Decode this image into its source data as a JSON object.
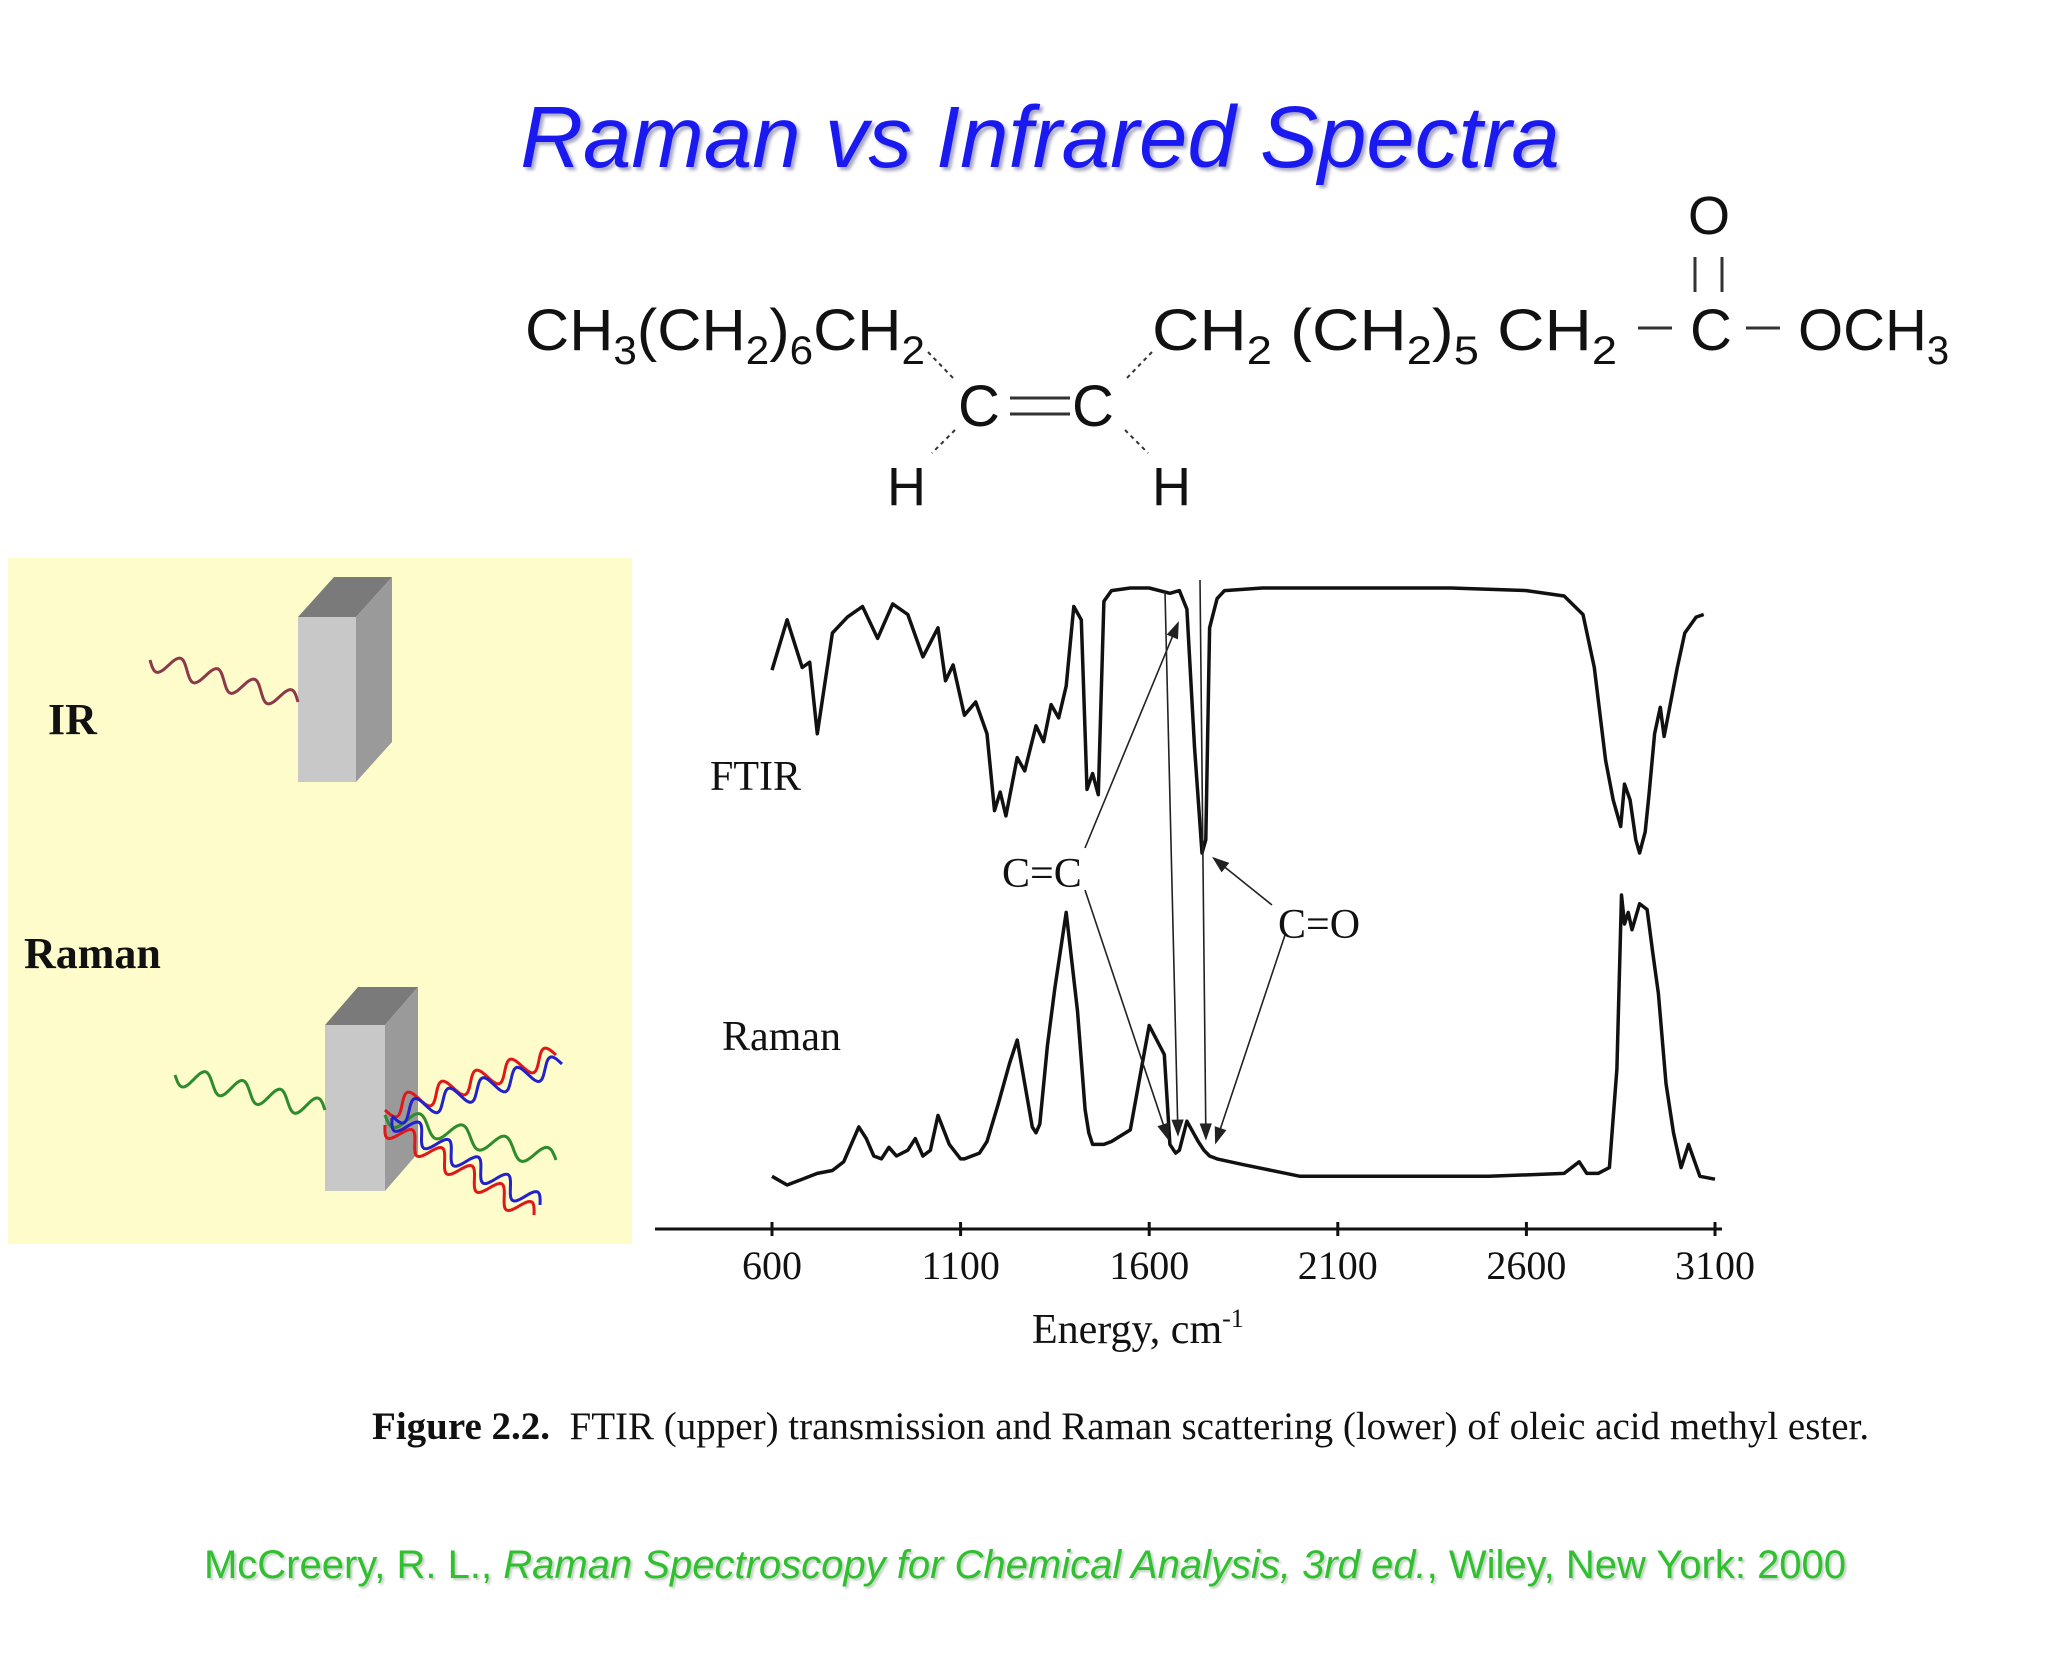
{
  "slide": {
    "title": "Raman vs Infrared Spectra",
    "caption_label": "Figure 2.2.",
    "caption_text": "FTIR (upper) transmission and Raman scattering (lower) of oleic acid methyl ester.",
    "citation_author": "McCreery, R. L., ",
    "citation_title": "Raman Spectroscopy for Chemical Analysis, 3rd ed.",
    "citation_tail": ", Wiley, New York: 2000"
  },
  "molecule": {
    "left_chain": "CH3(CH2)6CH2",
    "right_chain": "CH2  (CH2)5  CH2",
    "double_bond_left": "C",
    "double_bond_right": "C",
    "h_left": "H",
    "h_right": "H",
    "carbonyl_o": "O",
    "carbonyl_c": "C",
    "ester_group": "OCH3"
  },
  "illustration": {
    "ir_label": "IR",
    "raman_label": "Raman",
    "panel_color": "#fefccb",
    "wave_colors": {
      "ir": "#8b3a4a",
      "incident": "#2e8b2e",
      "stokes": "#e01818",
      "anti_stokes": "#2222cc"
    }
  },
  "chart_data": {
    "type": "line",
    "title": "",
    "xlabel": "Energy, cm",
    "xlabel_sup": "-1",
    "ylabel": "",
    "xlim": [
      600,
      3100
    ],
    "x_ticks": [
      "600",
      "1100",
      "1600",
      "2100",
      "2600",
      "3100"
    ],
    "grid": false,
    "series": [
      {
        "name": "FTIR",
        "x": [
          600,
          640,
          680,
          700,
          720,
          760,
          800,
          840,
          880,
          920,
          960,
          1000,
          1040,
          1060,
          1080,
          1110,
          1140,
          1170,
          1190,
          1205,
          1220,
          1250,
          1270,
          1300,
          1320,
          1340,
          1360,
          1380,
          1400,
          1420,
          1435,
          1450,
          1465,
          1480,
          1500,
          1550,
          1600,
          1655,
          1680,
          1700,
          1720,
          1740,
          1750,
          1760,
          1780,
          1800,
          1900,
          2000,
          2200,
          2400,
          2600,
          2700,
          2750,
          2780,
          2810,
          2830,
          2850,
          2860,
          2875,
          2890,
          2900,
          2915,
          2925,
          2940,
          2955,
          2965,
          2980,
          3000,
          3020,
          3050,
          3070
        ],
        "values": [
          0.69,
          0.88,
          0.7,
          0.72,
          0.45,
          0.83,
          0.89,
          0.93,
          0.81,
          0.94,
          0.9,
          0.74,
          0.85,
          0.65,
          0.71,
          0.52,
          0.57,
          0.45,
          0.16,
          0.23,
          0.14,
          0.36,
          0.31,
          0.48,
          0.42,
          0.56,
          0.51,
          0.63,
          0.93,
          0.88,
          0.24,
          0.3,
          0.22,
          0.95,
          0.99,
          1.0,
          1.0,
          0.98,
          0.99,
          0.92,
          0.4,
          0.0,
          0.05,
          0.85,
          0.96,
          0.99,
          1.0,
          1.0,
          1.0,
          1.0,
          0.99,
          0.97,
          0.9,
          0.7,
          0.35,
          0.2,
          0.1,
          0.26,
          0.2,
          0.05,
          0.0,
          0.08,
          0.22,
          0.45,
          0.55,
          0.44,
          0.55,
          0.7,
          0.83,
          0.89,
          0.9
        ]
      },
      {
        "name": "Raman",
        "x": [
          600,
          640,
          680,
          720,
          760,
          790,
          810,
          830,
          850,
          870,
          890,
          910,
          930,
          960,
          980,
          1000,
          1020,
          1040,
          1070,
          1100,
          1110,
          1130,
          1150,
          1170,
          1200,
          1230,
          1250,
          1270,
          1290,
          1300,
          1310,
          1330,
          1350,
          1380,
          1410,
          1430,
          1440,
          1450,
          1460,
          1480,
          1500,
          1550,
          1600,
          1640,
          1655,
          1670,
          1680,
          1700,
          1730,
          1745,
          1760,
          1780,
          1850,
          2000,
          2100,
          2300,
          2500,
          2700,
          2740,
          2760,
          2790,
          2820,
          2840,
          2852,
          2860,
          2870,
          2880,
          2900,
          2920,
          2935,
          2950,
          2970,
          2990,
          3010,
          3030,
          3060,
          3100
        ],
        "values": [
          0.03,
          0.0,
          0.02,
          0.04,
          0.05,
          0.08,
          0.14,
          0.2,
          0.16,
          0.1,
          0.09,
          0.13,
          0.1,
          0.12,
          0.16,
          0.1,
          0.12,
          0.24,
          0.14,
          0.09,
          0.09,
          0.1,
          0.11,
          0.15,
          0.28,
          0.42,
          0.5,
          0.35,
          0.2,
          0.18,
          0.21,
          0.48,
          0.68,
          0.94,
          0.6,
          0.26,
          0.18,
          0.14,
          0.14,
          0.14,
          0.15,
          0.19,
          0.55,
          0.45,
          0.14,
          0.11,
          0.12,
          0.22,
          0.15,
          0.12,
          0.1,
          0.09,
          0.07,
          0.03,
          0.03,
          0.03,
          0.03,
          0.04,
          0.08,
          0.04,
          0.04,
          0.06,
          0.4,
          1.0,
          0.9,
          0.94,
          0.88,
          0.97,
          0.95,
          0.8,
          0.66,
          0.35,
          0.18,
          0.06,
          0.14,
          0.03,
          0.02
        ]
      }
    ],
    "trace_labels": [
      "FTIR",
      "Raman"
    ],
    "annotations": [
      {
        "text": "C=C",
        "points_to_cm": 1655
      },
      {
        "text": "C=O",
        "points_to_cm": 1745
      }
    ]
  }
}
